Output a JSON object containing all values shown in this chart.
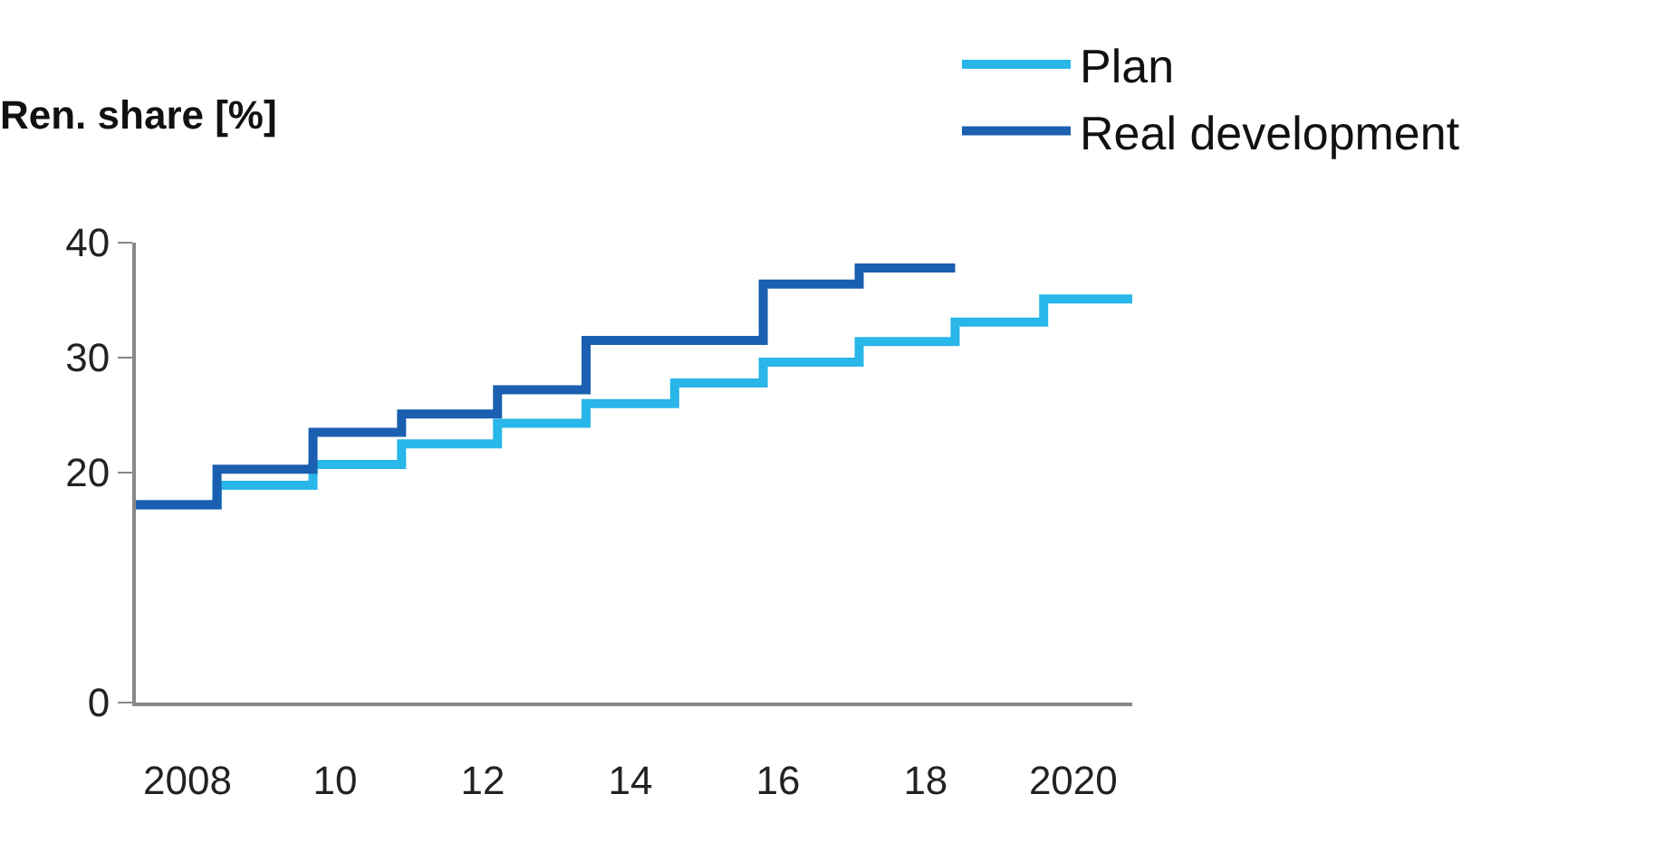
{
  "chart_data": {
    "type": "step",
    "ylabel": "Ren. share [%]",
    "xlim": [
      2007.3,
      2020.8
    ],
    "xticks": [
      2008,
      {
        "value": 2010,
        "label": "10"
      },
      {
        "value": 2012,
        "label": "12"
      },
      {
        "value": 2014,
        "label": "14"
      },
      {
        "value": 2016,
        "label": "16"
      },
      {
        "value": 2018,
        "label": "18"
      },
      2020
    ],
    "ylim": [
      0,
      40
    ],
    "yticks": [
      0,
      20,
      30,
      40
    ],
    "legend": "top right",
    "marker": "none",
    "line_style": "solid",
    "series": [
      {
        "name": "Plan",
        "color": "#29b6e8",
        "x": [
          2007.3,
          2008.4,
          2009.7,
          2010.9,
          2012.2,
          2013.4,
          2014.6,
          2015.8,
          2017.1,
          2018.4,
          2019.6,
          2020.8
        ],
        "values": [
          17.2,
          18.9,
          20.7,
          22.5,
          24.3,
          26.0,
          27.8,
          29.6,
          31.4,
          33.1,
          35.1,
          35.1
        ]
      },
      {
        "name": "Real development",
        "color": "#1a5fb0",
        "x": [
          2007.3,
          2008.4,
          2009.7,
          2010.9,
          2012.2,
          2013.4,
          2015.8,
          2017.1,
          2018.4
        ],
        "values": [
          17.2,
          20.3,
          23.5,
          25.1,
          27.2,
          31.5,
          36.4,
          37.8,
          37.8
        ]
      }
    ]
  }
}
